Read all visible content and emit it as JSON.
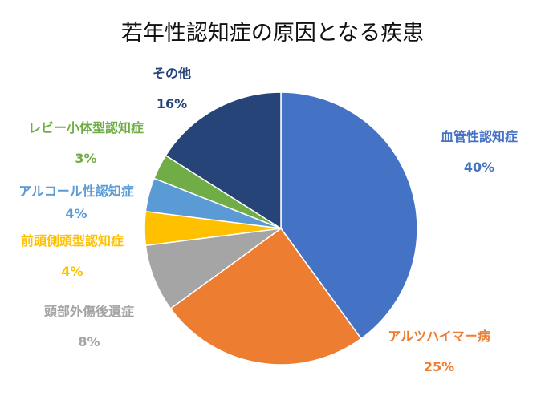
{
  "chart_data": {
    "type": "pie",
    "title": "若年性認知症の原因となる疾患",
    "start_angle_deg": 0,
    "direction": "clockwise",
    "slices": [
      {
        "name": "血管性認知症",
        "value": 40,
        "label": "40%",
        "color": "#4472c4"
      },
      {
        "name": "アルツハイマー病",
        "value": 25,
        "label": "25%",
        "color": "#ed7d31"
      },
      {
        "name": "頭部外傷後遺症",
        "value": 8,
        "label": "8%",
        "color": "#a5a5a5"
      },
      {
        "name": "前頭側頭型認知症",
        "value": 4,
        "label": "4%",
        "color": "#ffc000"
      },
      {
        "name": "アルコール性認知症",
        "value": 4,
        "label": "4%",
        "color": "#5b9bd5"
      },
      {
        "name": "レビー小体型認知症",
        "value": 3,
        "label": "3%",
        "color": "#70ad47"
      },
      {
        "name": "その他",
        "value": 16,
        "label": "16%",
        "color": "#264478"
      }
    ]
  }
}
